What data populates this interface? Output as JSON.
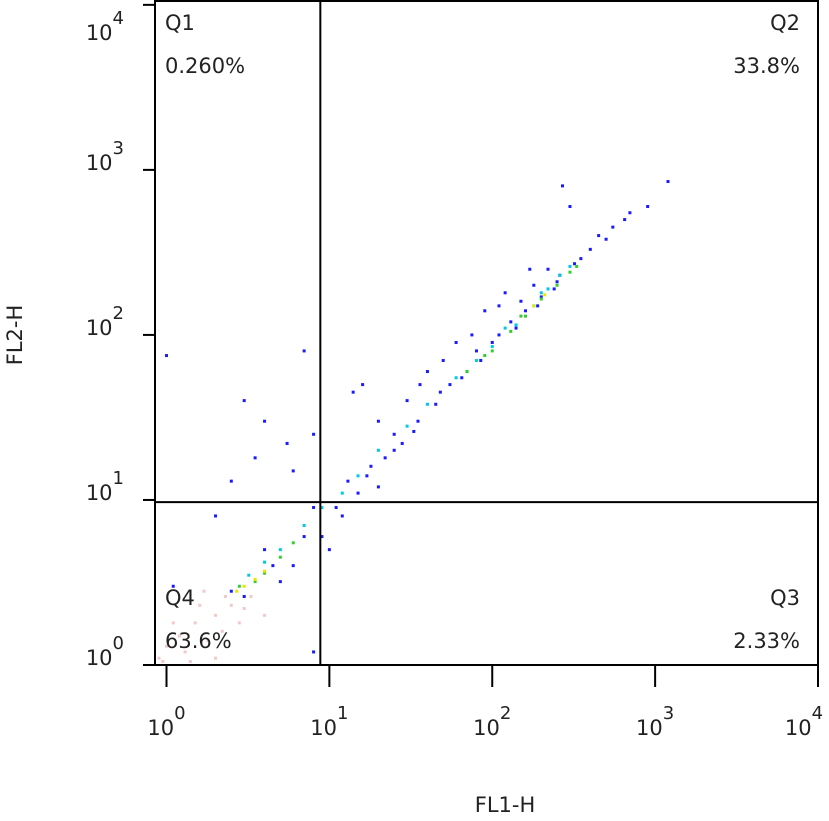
{
  "chart_data": {
    "type": "scatter",
    "x_label": "FL1-H",
    "y_label": "FL2-H",
    "xscale": "log",
    "yscale": "log",
    "xlim": [
      0.85,
      10000
    ],
    "ylim": [
      1,
      10700
    ],
    "xticks": [
      {
        "value": 1,
        "label": "10",
        "exponent": "0"
      },
      {
        "value": 10,
        "label": "10",
        "exponent": "1"
      },
      {
        "value": 100,
        "label": "10",
        "exponent": "2"
      },
      {
        "value": 1000,
        "label": "10",
        "exponent": "3"
      },
      {
        "value": 10000,
        "label": "10",
        "exponent": "4"
      }
    ],
    "yticks": [
      {
        "value": 1,
        "label": "10",
        "exponent": "0"
      },
      {
        "value": 10,
        "label": "10",
        "exponent": "1"
      },
      {
        "value": 100,
        "label": "10",
        "exponent": "2"
      },
      {
        "value": 1000,
        "label": "10",
        "exponent": "3"
      },
      {
        "value": 10000,
        "label": "10",
        "exponent": "4"
      }
    ],
    "gates": {
      "x": 8.8,
      "y": 9.7
    },
    "quadrants": {
      "names": [
        "Q1",
        "Q2",
        "Q3",
        "Q4"
      ],
      "values": [
        0.26,
        33.8,
        2.33,
        63.6
      ],
      "value_labels": [
        "0.260%",
        "33.8%",
        "2.33%",
        "63.6%"
      ]
    },
    "series": [
      {
        "color": "#1a1aff",
        "x": [
          1.0,
          7,
          3,
          4,
          5.5,
          2.5,
          3.5,
          6,
          8,
          14,
          16,
          20,
          25,
          30,
          40,
          50,
          60,
          70,
          90,
          120,
          150,
          180,
          220,
          270,
          300,
          450,
          550,
          650,
          700,
          1200,
          900,
          12,
          15,
          18,
          22,
          28,
          35,
          45,
          55,
          80,
          100,
          130,
          160,
          200,
          250,
          320,
          400,
          500,
          9,
          10,
          11,
          7,
          6,
          5,
          3,
          2.5,
          4.5,
          8,
          13,
          17,
          25,
          33,
          48,
          65,
          85,
          110,
          140,
          190,
          240,
          350,
          8,
          1.1,
          2,
          4,
          36,
          20,
          75,
          110,
          170,
          260
        ],
        "y": [
          75,
          80,
          40,
          30,
          22,
          13,
          18,
          15,
          25,
          45,
          50,
          30,
          20,
          40,
          60,
          70,
          90,
          60,
          140,
          180,
          160,
          200,
          250,
          800,
          600,
          400,
          450,
          500,
          550,
          850,
          600,
          8,
          11,
          16,
          18,
          22,
          30,
          38,
          50,
          80,
          90,
          120,
          140,
          170,
          210,
          270,
          330,
          380,
          6,
          5,
          9,
          6,
          4,
          3.2,
          2.6,
          2.8,
          4,
          9,
          13,
          14,
          25,
          26,
          45,
          55,
          70,
          100,
          110,
          150,
          190,
          290,
          1.2,
          3,
          8,
          5,
          50,
          12,
          100,
          150,
          250,
          230
        ]
      },
      {
        "color": "#00c8e6",
        "x": [
          60,
          80,
          100,
          140,
          180,
          220,
          260,
          300,
          40,
          30,
          20,
          15,
          12,
          9,
          7,
          5,
          4,
          3.2,
          120,
          200
        ],
        "y": [
          55,
          70,
          85,
          115,
          150,
          190,
          230,
          260,
          38,
          28,
          20,
          14,
          11,
          9,
          7,
          5,
          4.2,
          3.5,
          110,
          180
        ]
      },
      {
        "color": "#33cc33",
        "x": [
          100,
          130,
          160,
          200,
          250,
          300,
          4,
          3.5,
          5,
          6,
          2.8,
          70,
          90,
          330,
          150
        ],
        "y": [
          80,
          105,
          130,
          165,
          200,
          240,
          3.6,
          3.2,
          4.5,
          5.5,
          3,
          60,
          75,
          260,
          130
        ]
      },
      {
        "color": "#e6e600",
        "x": [
          3,
          3.5,
          4,
          2.7,
          180,
          210
        ],
        "y": [
          3,
          3.3,
          3.7,
          2.8,
          150,
          175
        ]
      },
      {
        "color": "#f2c8c8",
        "x": [
          1.2,
          1.5,
          2,
          2.5,
          3,
          1.8,
          1.3,
          2.2,
          1,
          0.9,
          1.6,
          2.8,
          2.3,
          1.1,
          3.3,
          0.95,
          1.4,
          2,
          4,
          1.7
        ],
        "y": [
          1.5,
          1.8,
          2,
          2.3,
          2.2,
          1.4,
          1.2,
          1.6,
          1.3,
          1.1,
          2.3,
          1.8,
          2.6,
          1.8,
          2.6,
          1.05,
          1.05,
          1.1,
          2,
          2.8
        ]
      }
    ]
  }
}
